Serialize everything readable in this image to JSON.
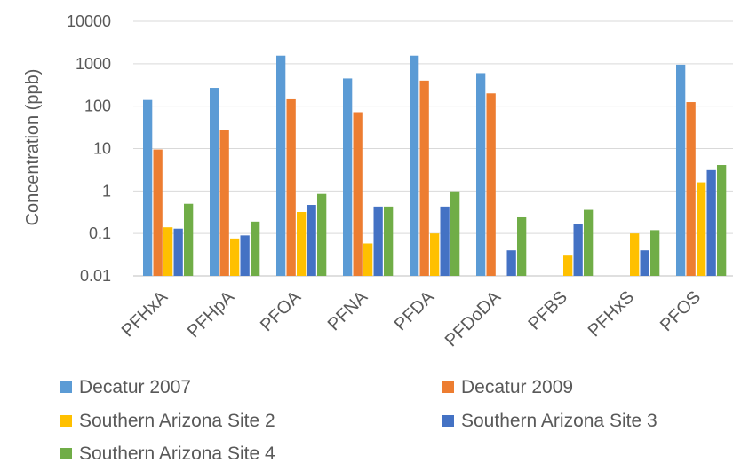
{
  "chart_data": {
    "type": "bar",
    "yscale": "log",
    "ylabel": "Concentration (ppb)",
    "ylim": [
      0.01,
      10000
    ],
    "yticks": [
      "10000",
      "1000",
      "100",
      "10",
      "1",
      "0.1",
      "0.01"
    ],
    "grid": true,
    "legend_position": "bottom",
    "categories": [
      "PFHxA",
      "PFHpA",
      "PFOA",
      "PFNA",
      "PFDA",
      "PFDoDA",
      "PFBS",
      "PFHxS",
      "PFOS"
    ],
    "series": [
      {
        "name": "Decatur 2007",
        "color": "#5b9bd5",
        "values": [
          140,
          270,
          1550,
          450,
          1550,
          600,
          null,
          null,
          950
        ]
      },
      {
        "name": "Decatur 2009",
        "color": "#ed7d31",
        "values": [
          9.5,
          27,
          145,
          72,
          400,
          200,
          null,
          null,
          125
        ]
      },
      {
        "name": "Southern Arizona Site 2",
        "color": "#ffc000",
        "values": [
          0.14,
          0.076,
          0.32,
          0.058,
          0.1,
          null,
          0.03,
          0.1,
          1.6
        ]
      },
      {
        "name": "Southern Arizona Site 3",
        "color": "#4472c4",
        "values": [
          0.13,
          0.09,
          0.47,
          0.43,
          0.43,
          0.04,
          0.17,
          0.04,
          3.1
        ]
      },
      {
        "name": "Southern Arizona Site 4",
        "color": "#70ad47",
        "values": [
          0.5,
          0.19,
          0.85,
          0.43,
          0.98,
          0.24,
          0.36,
          0.12,
          4.1
        ]
      }
    ]
  }
}
